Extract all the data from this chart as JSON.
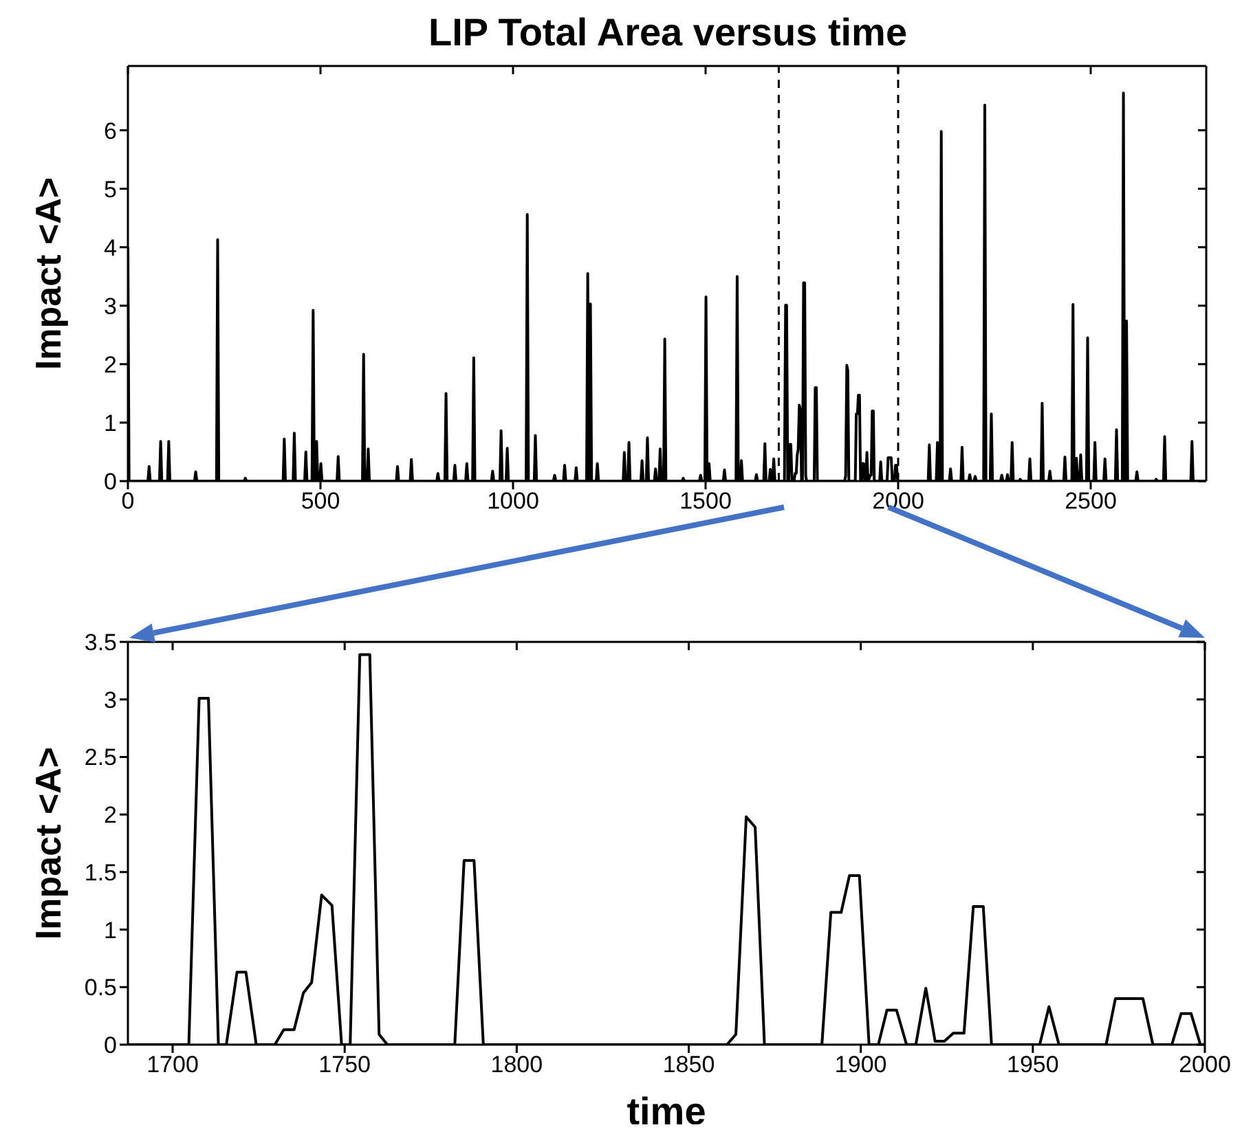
{
  "chart_data": [
    {
      "type": "line",
      "title": "LIP Total Area versus time",
      "ylabel": "Impact <A>",
      "xlim": [
        0,
        2800
      ],
      "xticks": [
        0,
        500,
        1000,
        1500,
        2000,
        2500
      ],
      "ylim": [
        0,
        7.1
      ],
      "yticks": [
        0,
        1,
        2,
        3,
        4,
        5,
        6
      ],
      "ref_lines": [
        {
          "axis": "x",
          "value": 1690,
          "color": "#000000",
          "line_style": "dashed"
        },
        {
          "axis": "x",
          "value": 2000,
          "color": "#000000",
          "line_style": "dashed"
        }
      ],
      "series": [
        {
          "color": "#000000",
          "x": [
            0,
            3,
            52,
            55,
            58,
            82,
            85,
            88,
            103,
            106,
            109,
            173,
            176,
            179,
            230,
            233,
            236,
            302,
            305,
            308,
            403,
            406,
            409,
            429,
            432,
            435,
            459,
            462,
            465,
            478,
            481,
            484,
            487,
            490,
            493,
            498,
            501,
            504,
            543,
            546,
            549,
            609,
            612,
            615,
            621,
            624,
            627,
            697,
            700,
            703,
            733,
            736,
            739,
            802,
            805,
            808,
            823,
            826,
            829,
            846,
            849,
            852,
            877,
            880,
            883,
            895,
            898,
            901,
            944,
            947,
            950,
            966,
            969,
            972,
            982,
            985,
            988,
            1034,
            1037,
            1040,
            1055,
            1058,
            1061,
            1105,
            1108,
            1111,
            1131,
            1134,
            1137,
            1161,
            1164,
            1167,
            1191,
            1194,
            1197,
            1198,
            1201,
            1204,
            1216,
            1219,
            1222,
            1286,
            1289,
            1292,
            1298,
            1301,
            1304,
            1332,
            1335,
            1338,
            1346,
            1349,
            1352,
            1367,
            1370,
            1373,
            1379,
            1382,
            1385,
            1391,
            1394,
            1397,
            1439,
            1442,
            1445,
            1484,
            1487,
            1490,
            1498,
            1501,
            1504,
            1506,
            1509,
            1512,
            1546,
            1549,
            1552,
            1579,
            1582,
            1585,
            1590,
            1593,
            1596,
            1629,
            1632,
            1635,
            1651,
            1654,
            1657,
            1665,
            1668,
            1671,
            1674,
            1677,
            1680,
            1687,
            1704.7,
            1707.7,
            1710.4,
            1713.3,
            1715.6,
            1718.7,
            1721.3,
            1724.3,
            1729.7,
            1732.3,
            1735.3,
            1738,
            1740.4,
            1743.3,
            1746.3,
            1749.1,
            1751.6,
            1754.4,
            1757.3,
            1760,
            1762.4,
            1782,
            1784.7,
            1787.6,
            1790.3,
            1861.1,
            1863.7,
            1866.7,
            1869.3,
            1872,
            1888.7,
            1891.3,
            1894.3,
            1896.7,
            1899.6,
            1902.4,
            1905.1,
            1907.6,
            1910.4,
            1913.3,
            1916,
            1918.9,
            1921.6,
            1924.3,
            1926.9,
            1930,
            1932.7,
            1935.6,
            1938,
            1952,
            1954.7,
            1957.6,
            1971.3,
            1974,
            1982,
            1984.9,
            1990.4,
            1993.1,
            1996,
            1998.7,
            2000,
            2078,
            2081,
            2084,
            2099,
            2102,
            2105,
            2109,
            2112,
            2115,
            2133,
            2136,
            2139,
            2163,
            2166,
            2169,
            2183,
            2186,
            2189,
            2197,
            2200,
            2203,
            2222,
            2225,
            2228,
            2239,
            2242,
            2245,
            2266,
            2269,
            2272,
            2281,
            2284,
            2287,
            2293,
            2296,
            2299,
            2314,
            2317,
            2320,
            2339,
            2342,
            2345,
            2371,
            2374,
            2377,
            2391,
            2394,
            2397,
            2430,
            2433,
            2436,
            2451,
            2454,
            2457,
            2460,
            2463,
            2466,
            2471,
            2474,
            2477,
            2489,
            2492,
            2495,
            2508,
            2511,
            2514,
            2534,
            2537,
            2540,
            2564,
            2567,
            2570,
            2582,
            2585,
            2588,
            2590,
            2593,
            2596,
            2617,
            2620,
            2623,
            2667,
            2670,
            2673,
            2689,
            2692,
            2695,
            2760,
            2763,
            2766,
            2800
          ],
          "values": [
            4,
            0,
            0,
            0.25,
            0,
            0,
            0.68,
            0,
            0,
            0.68,
            0,
            0,
            0.16,
            0,
            0,
            4.13,
            0,
            0,
            0.05,
            0,
            0,
            0.72,
            0,
            0,
            0.82,
            0,
            0,
            0.5,
            0,
            0,
            2.92,
            0,
            0,
            0.68,
            0,
            0,
            0.3,
            0,
            0,
            0.42,
            0,
            0,
            2.17,
            0,
            0,
            0.55,
            0,
            0,
            0.25,
            0,
            0,
            0.37,
            0,
            0,
            0.13,
            0,
            0,
            1.5,
            0,
            0,
            0.27,
            0,
            0,
            0.3,
            0,
            0,
            2.11,
            0,
            0,
            0.17,
            0,
            0,
            0.86,
            0,
            0,
            0.56,
            0,
            0,
            4.56,
            0,
            0,
            0.78,
            0,
            0,
            0.1,
            0,
            0,
            0.27,
            0,
            0,
            0.23,
            0,
            0,
            3.55,
            0,
            0,
            3.03,
            0,
            0,
            0.3,
            0,
            0,
            0.49,
            0,
            0,
            0.66,
            0,
            0,
            0.35,
            0,
            0,
            0.74,
            0,
            0,
            0.21,
            0,
            0,
            0.55,
            0,
            0,
            2.43,
            0,
            0,
            0.05,
            0,
            0,
            0.1,
            0,
            0,
            3.15,
            0,
            0,
            0.3,
            0,
            0,
            0.19,
            0,
            0,
            3.5,
            0,
            0,
            0.35,
            0,
            0,
            0.11,
            0,
            0,
            0.64,
            0,
            0,
            0.2,
            0,
            0,
            0.38,
            0,
            0,
            0,
            3.01,
            3.01,
            0,
            0,
            0.63,
            0.63,
            0,
            0,
            0.13,
            0.13,
            0.45,
            0.54,
            1.3,
            1.21,
            0,
            0,
            3.39,
            3.39,
            0.09,
            0,
            0,
            1.6,
            1.6,
            0,
            0,
            0.09,
            1.98,
            1.89,
            0,
            0,
            1.15,
            1.15,
            1.47,
            1.47,
            0,
            0,
            0.3,
            0.3,
            0,
            0,
            0.49,
            0.03,
            0.03,
            0.1,
            0.1,
            1.2,
            1.2,
            0,
            0,
            0.33,
            0,
            0,
            0.4,
            0.4,
            0,
            0,
            0.27,
            0.27,
            0,
            0,
            0,
            0.62,
            0,
            0,
            0.66,
            0,
            0,
            5.98,
            0,
            0,
            0.21,
            0,
            0,
            0.58,
            0,
            0,
            0.11,
            0,
            0,
            0.08,
            0,
            0,
            6.43,
            0,
            0,
            1.15,
            0,
            0,
            0.1,
            0,
            0,
            0.11,
            0,
            0,
            0.66,
            0,
            0,
            0.03,
            0,
            0,
            0.38,
            0,
            0,
            1.33,
            0,
            0,
            0.17,
            0,
            0,
            0.41,
            0,
            0,
            3.02,
            0,
            0,
            0.39,
            0,
            0,
            0.45,
            0,
            0,
            2.45,
            0,
            0,
            0.66,
            0,
            0,
            0.38,
            0,
            0,
            0.88,
            0,
            0,
            6.64,
            0,
            0,
            2.74,
            0,
            0,
            0.16,
            0,
            0,
            0.03,
            0,
            0,
            0.76,
            0,
            0,
            0.68,
            0,
            0
          ]
        }
      ]
    },
    {
      "type": "line",
      "xlabel": "time",
      "ylabel": "Impact <A>",
      "xlim": [
        1687,
        2000
      ],
      "xticks": [
        1700,
        1750,
        1800,
        1850,
        1900,
        1950,
        2000
      ],
      "ylim": [
        0,
        3.5
      ],
      "yticks": [
        0,
        0.5,
        1,
        1.5,
        2,
        2.5,
        3,
        3.5
      ],
      "series": [
        {
          "color": "#000000",
          "x": [
            1687,
            1704.7,
            1707.7,
            1710.4,
            1713.3,
            1715.6,
            1718.7,
            1721.3,
            1724.3,
            1729.7,
            1732.3,
            1735.3,
            1738,
            1740.4,
            1743.3,
            1746.3,
            1749.1,
            1751.6,
            1754.4,
            1757.3,
            1760,
            1762.4,
            1782,
            1784.7,
            1787.6,
            1790.3,
            1861.1,
            1863.7,
            1866.7,
            1869.3,
            1872,
            1888.7,
            1891.3,
            1894.3,
            1896.7,
            1899.6,
            1902.4,
            1905.1,
            1907.6,
            1910.4,
            1913.3,
            1916,
            1918.9,
            1921.6,
            1924.3,
            1926.9,
            1930,
            1932.7,
            1935.6,
            1938,
            1952,
            1954.7,
            1957.6,
            1971.3,
            1974,
            1982,
            1984.9,
            1990.4,
            1993.1,
            1996,
            1998.7,
            2000
          ],
          "values": [
            0,
            0,
            3.01,
            3.01,
            0,
            0,
            0.63,
            0.63,
            0,
            0,
            0.13,
            0.13,
            0.45,
            0.54,
            1.3,
            1.21,
            0,
            0,
            3.39,
            3.39,
            0.09,
            0,
            0,
            1.6,
            1.6,
            0,
            0,
            0.09,
            1.98,
            1.89,
            0,
            0,
            1.15,
            1.15,
            1.47,
            1.47,
            0,
            0,
            0.3,
            0.3,
            0,
            0,
            0.49,
            0.03,
            0.03,
            0.1,
            0.1,
            1.2,
            1.2,
            0,
            0,
            0.33,
            0,
            0,
            0.4,
            0.4,
            0,
            0,
            0.27,
            0.27,
            0,
            0
          ]
        }
      ]
    }
  ]
}
